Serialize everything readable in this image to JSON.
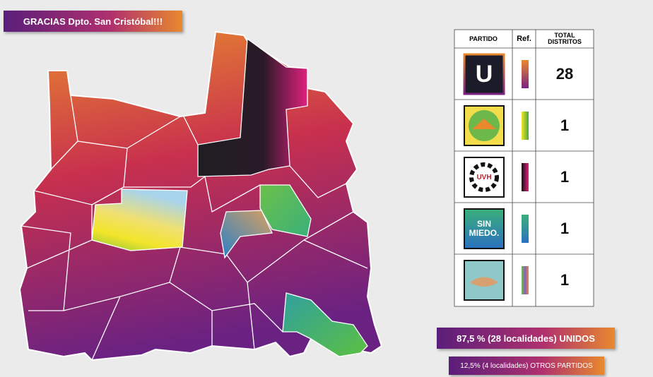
{
  "header": {
    "title": "GRACIAS Dpto. San Cristóbal!!!"
  },
  "table": {
    "columns": [
      "PARTIDO",
      "Ref.",
      "TOTAL DISTRITOS"
    ],
    "rows": [
      {
        "logo": "U",
        "total": "28"
      },
      {
        "total": "1"
      },
      {
        "logo": "UVH",
        "total": "1"
      },
      {
        "logo": "SIN MIEDO.",
        "total": "1"
      },
      {
        "total": "1"
      }
    ]
  },
  "summary": [
    "87,5 % (28 localidades) UNIDOS",
    "12,5% (4 localidades) OTROS PARTIDOS"
  ]
}
